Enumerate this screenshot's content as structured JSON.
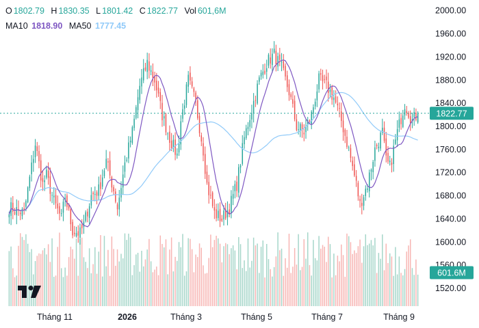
{
  "legend": {
    "o_label": "O",
    "o_value": "1802.79",
    "h_label": "H",
    "h_value": "1830.35",
    "l_label": "L",
    "l_value": "1801.42",
    "c_label": "C",
    "c_value": "1822.77",
    "vol_label": "Vol",
    "vol_value": "601,6M",
    "ma10_label": "MA10",
    "ma10_value": "1818.90",
    "ma50_label": "MA50",
    "ma50_value": "1777.45"
  },
  "colors": {
    "up": "#26a69a",
    "down": "#ef5350",
    "up_volume": "#a5d6c9",
    "down_volume": "#f7b5b3",
    "ma10": "#7e57c2",
    "ma50": "#90caf9",
    "price_badge": "#26a69a"
  },
  "chart_data": {
    "type": "candlestick",
    "y_axis": {
      "position": "right",
      "ylim": [
        1510,
        2005
      ],
      "tick_labels": [
        "2000.00",
        "1960.00",
        "1920.00",
        "1880.00",
        "1840.00",
        "1800.00",
        "1760.00",
        "1720.00",
        "1680.00",
        "1640.00",
        "1600.00",
        "1560.00",
        "1520.00"
      ],
      "tick_values": [
        2000,
        1960,
        1920,
        1880,
        1840,
        1800,
        1760,
        1720,
        1680,
        1640,
        1600,
        1560,
        1520
      ]
    },
    "x_axis": {
      "tick_labels": [
        "Tháng 11",
        "2026",
        "Tháng 3",
        "Tháng 5",
        "Tháng 7",
        "Tháng 9"
      ],
      "bold_labels": [
        "2026"
      ]
    },
    "last_price": "1822.77",
    "last_volume": "601.6M",
    "grid": false,
    "series_count": 220,
    "close_anchors": [
      [
        0,
        1660
      ],
      [
        8,
        1650
      ],
      [
        14,
        1770
      ],
      [
        18,
        1700
      ],
      [
        20,
        1715
      ],
      [
        24,
        1670
      ],
      [
        28,
        1640
      ],
      [
        30,
        1680
      ],
      [
        34,
        1620
      ],
      [
        38,
        1615
      ],
      [
        40,
        1630
      ],
      [
        44,
        1680
      ],
      [
        48,
        1690
      ],
      [
        52,
        1740
      ],
      [
        56,
        1690
      ],
      [
        58,
        1660
      ],
      [
        62,
        1735
      ],
      [
        66,
        1790
      ],
      [
        70,
        1870
      ],
      [
        74,
        1910
      ],
      [
        78,
        1880
      ],
      [
        82,
        1820
      ],
      [
        86,
        1780
      ],
      [
        90,
        1750
      ],
      [
        92,
        1810
      ],
      [
        96,
        1880
      ],
      [
        100,
        1840
      ],
      [
        104,
        1760
      ],
      [
        106,
        1700
      ],
      [
        110,
        1650
      ],
      [
        114,
        1640
      ],
      [
        118,
        1660
      ],
      [
        122,
        1700
      ],
      [
        126,
        1780
      ],
      [
        130,
        1830
      ],
      [
        134,
        1880
      ],
      [
        138,
        1910
      ],
      [
        142,
        1925
      ],
      [
        146,
        1900
      ],
      [
        150,
        1860
      ],
      [
        154,
        1800
      ],
      [
        158,
        1790
      ],
      [
        162,
        1820
      ],
      [
        166,
        1880
      ],
      [
        170,
        1870
      ],
      [
        174,
        1850
      ],
      [
        178,
        1810
      ],
      [
        182,
        1760
      ],
      [
        186,
        1700
      ],
      [
        188,
        1665
      ],
      [
        192,
        1700
      ],
      [
        196,
        1760
      ],
      [
        200,
        1790
      ],
      [
        202,
        1740
      ],
      [
        204,
        1730
      ],
      [
        208,
        1790
      ],
      [
        212,
        1840
      ],
      [
        216,
        1810
      ],
      [
        219,
        1822.77
      ]
    ],
    "volume_range_m": [
      270,
      700
    ]
  }
}
